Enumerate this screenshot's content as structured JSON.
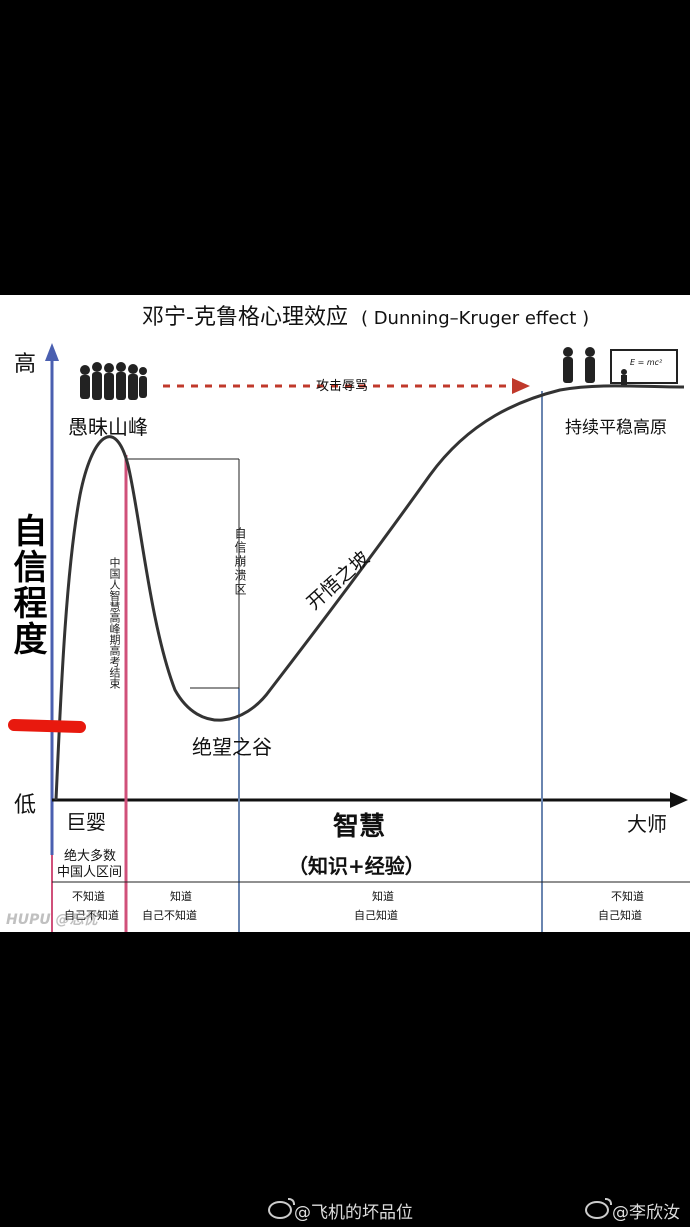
{
  "title": "邓宁-克鲁格心理效应",
  "title_en": "( Dunning–Kruger effect )",
  "y_axis": {
    "label": "自信程度",
    "high": "高",
    "low": "低"
  },
  "x_axis": {
    "start": "巨婴",
    "center": "智慧",
    "center_sub": "（知识+经验）",
    "end": "大师"
  },
  "labels": {
    "peak": "愚昧山峰",
    "valley": "绝望之谷",
    "slope": "开悟之坡",
    "plateau": "持续平稳高原",
    "attack": "攻击辱骂",
    "collapse_zone": "自信崩溃区",
    "gaokao": "中国人智慧高峰期高考结束",
    "majority": "绝大多数",
    "majority2": "中国人区间",
    "formula": "E = mc²"
  },
  "bottom_row": [
    {
      "line1": "不知道",
      "line2": "自己不知道"
    },
    {
      "line1": "知道",
      "line2": "自己不知道"
    },
    {
      "line1": "知道",
      "line2": "自己知道"
    },
    {
      "line1": "不知道",
      "line2": "自己知道"
    }
  ],
  "watermark": "HUPU @忘忧",
  "footer": {
    "left": "@飞机的坏品位",
    "right": "@李欣汝"
  }
}
